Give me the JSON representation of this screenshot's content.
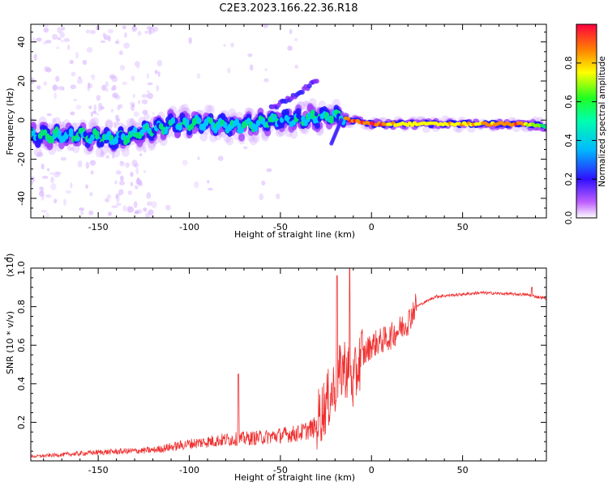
{
  "title": "C2E3.2023.166.22.36.R18",
  "chart_data": [
    {
      "type": "heatmap",
      "name": "spectrogram",
      "xlabel": "Height of straight line (km)",
      "ylabel": "Frequency (Hz)",
      "xlim": [
        -187,
        96
      ],
      "ylim": [
        -50,
        49
      ],
      "xticks": [
        -150,
        -100,
        -50,
        0,
        50
      ],
      "xtick_labels": [
        "-150",
        "-100",
        "-50",
        "0",
        "50"
      ],
      "yticks": [
        -40,
        -20,
        0,
        20,
        40
      ],
      "ytick_labels": [
        "-40",
        "-20",
        "0",
        "20",
        "40"
      ],
      "colorbar": {
        "label": "Normalized spectral amplitude",
        "range": [
          0,
          1
        ],
        "ticks": [
          0.0,
          0.2,
          0.4,
          0.6,
          0.8
        ],
        "tick_labels": [
          "0.0",
          "0.2",
          "0.4",
          "0.6",
          "0.8"
        ],
        "colormap": [
          "#e8c8ff",
          "#9b30ff",
          "#1a1aff",
          "#00c8ff",
          "#00e676",
          "#7cff00",
          "#ffff00",
          "#ff8c00",
          "#ff1a3c"
        ]
      },
      "ridge": [
        {
          "x": -185,
          "f": -8,
          "amp": 0.45
        },
        {
          "x": -160,
          "f": -8,
          "amp": 0.5
        },
        {
          "x": -140,
          "f": -10,
          "amp": 0.45
        },
        {
          "x": -125,
          "f": -6,
          "amp": 0.4
        },
        {
          "x": -110,
          "f": -2,
          "amp": 0.5
        },
        {
          "x": -90,
          "f": -2,
          "amp": 0.5
        },
        {
          "x": -70,
          "f": -3,
          "amp": 0.45
        },
        {
          "x": -50,
          "f": 0,
          "amp": 0.45
        },
        {
          "x": -35,
          "f": 1,
          "amp": 0.5
        },
        {
          "x": -20,
          "f": 2,
          "amp": 0.5
        },
        {
          "x": -12,
          "f": 0,
          "amp": 0.9
        },
        {
          "x": 0,
          "f": -2,
          "amp": 0.9
        },
        {
          "x": 20,
          "f": -2,
          "amp": 0.7
        },
        {
          "x": 50,
          "f": -2,
          "amp": 0.75
        },
        {
          "x": 80,
          "f": -2,
          "amp": 0.85
        },
        {
          "x": 95,
          "f": -3,
          "amp": 0.5
        }
      ],
      "branch": [
        {
          "x": -55,
          "f": 6
        },
        {
          "x": -45,
          "f": 11
        },
        {
          "x": -35,
          "f": 17
        },
        {
          "x": -30,
          "f": 20
        }
      ]
    },
    {
      "type": "line",
      "name": "snr",
      "xlabel": "Height of straight line (km)",
      "ylabel": "SNR (10 * v/v)",
      "y_multiplier": "(x10",
      "y_multiplier_exp": "4",
      "xlim": [
        -187,
        96
      ],
      "ylim": [
        0,
        1.0
      ],
      "xticks": [
        -150,
        -100,
        -50,
        0,
        50
      ],
      "xtick_labels": [
        "-150",
        "-100",
        "-50",
        "0",
        "50"
      ],
      "yticks": [
        0.2,
        0.4,
        0.6,
        0.8,
        1.0
      ],
      "ytick_labels": [
        "0.2",
        "0.4",
        "0.6",
        "0.8",
        "1.0"
      ],
      "color": "#f03030",
      "baseline": [
        {
          "x": -187,
          "y": 0.02
        },
        {
          "x": -150,
          "y": 0.04
        },
        {
          "x": -120,
          "y": 0.05
        },
        {
          "x": -100,
          "y": 0.08
        },
        {
          "x": -80,
          "y": 0.1
        },
        {
          "x": -60,
          "y": 0.11
        },
        {
          "x": -40,
          "y": 0.13
        },
        {
          "x": -30,
          "y": 0.16
        },
        {
          "x": -22,
          "y": 0.3
        },
        {
          "x": -15,
          "y": 0.45
        },
        {
          "x": -10,
          "y": 0.35
        },
        {
          "x": -5,
          "y": 0.52
        },
        {
          "x": 0,
          "y": 0.58
        },
        {
          "x": 10,
          "y": 0.62
        },
        {
          "x": 20,
          "y": 0.7
        },
        {
          "x": 25,
          "y": 0.8
        },
        {
          "x": 35,
          "y": 0.85
        },
        {
          "x": 60,
          "y": 0.87
        },
        {
          "x": 85,
          "y": 0.86
        },
        {
          "x": 96,
          "y": 0.84
        }
      ],
      "peaks": [
        {
          "x": -73,
          "y": 0.45
        },
        {
          "x": -19,
          "y": 0.96
        },
        {
          "x": -12,
          "y": 1.0
        },
        {
          "x": 88,
          "y": 0.9
        }
      ]
    }
  ]
}
